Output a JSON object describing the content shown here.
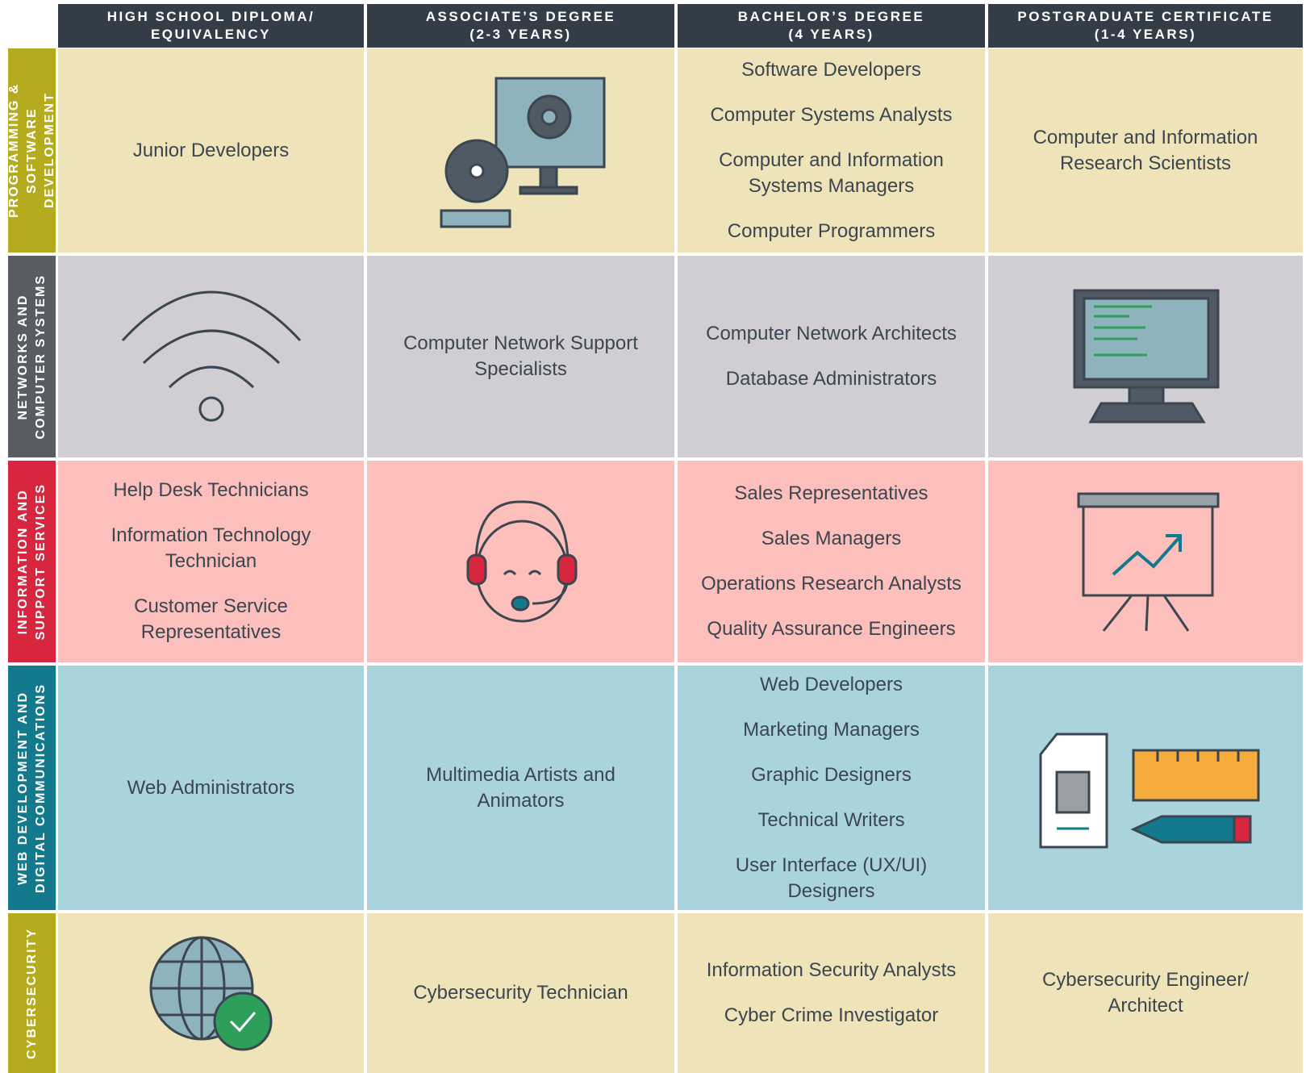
{
  "header": {
    "columns": [
      [
        "HIGH SCHOOL DIPLOMA/",
        "EQUIVALENCY"
      ],
      [
        "ASSOCIATE’S DEGREE",
        "(2-3 YEARS)"
      ],
      [
        "BACHELOR’S DEGREE",
        "(4 YEARS)"
      ],
      [
        "POSTGRADUATE CERTIFICATE",
        "(1-4 YEARS)"
      ]
    ]
  },
  "rows": [
    {
      "label": [
        "PROGRAMMING &",
        "SOFTWARE DEVELOPMENT"
      ],
      "cells": [
        [
          "Junior Developers"
        ],
        [],
        [
          "Software Developers",
          "Computer Systems Analysts",
          "Computer and Information Systems Managers",
          "Computer Programmers"
        ],
        [
          "Computer and Information Research Scientists"
        ]
      ]
    },
    {
      "label": [
        "NETWORKS AND",
        "COMPUTER SYSTEMS"
      ],
      "cells": [
        [],
        [
          "Computer Network Support Specialists"
        ],
        [
          "Computer Network Architects",
          "Database Administrators"
        ],
        []
      ]
    },
    {
      "label": [
        "INFORMATION AND",
        "SUPPORT SERVICES"
      ],
      "cells": [
        [
          "Help Desk Technicians",
          "Information Technology Technician",
          "Customer Service Representatives"
        ],
        [],
        [
          "Sales Representatives",
          "Sales Managers",
          "Operations Research Analysts",
          "Quality Assurance Engineers"
        ],
        []
      ]
    },
    {
      "label": [
        "WEB DEVELOPMENT AND",
        "DIGITAL COMMUNICATIONS"
      ],
      "cells": [
        [
          "Web Administrators"
        ],
        [
          "Multimedia Artists and Animators"
        ],
        [
          "Web Developers",
          "Marketing Managers",
          "Graphic Designers",
          "Technical Writers",
          "User Interface (UX/UI) Designers"
        ],
        []
      ]
    },
    {
      "label": [
        "CYBERSECURITY"
      ],
      "cells": [
        [],
        [
          "Cybersecurity Technician"
        ],
        [
          "Information Security Analysts",
          "Cyber Crime Investigator"
        ],
        [
          "Cybersecurity Engineer/ Architect"
        ]
      ]
    }
  ]
}
